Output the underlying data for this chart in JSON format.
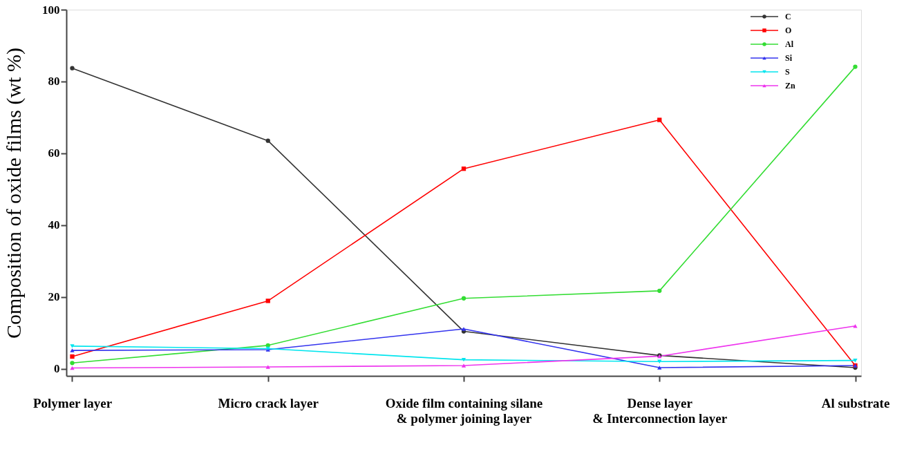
{
  "chart_data": {
    "type": "line",
    "ylabel": "Composition of oxide films (wt %)",
    "categories": [
      "Polymer layer",
      "Micro crack layer",
      "Oxide film containing silane\n& polymer joining layer",
      "Dense layer\n& Interconnection layer",
      "Al substrate"
    ],
    "series": [
      {
        "name": "C",
        "color": "#333333",
        "marker": "circle",
        "values": [
          83.7,
          63.5,
          10.4,
          3.7,
          0.3
        ]
      },
      {
        "name": "O",
        "color": "#ff0000",
        "marker": "square",
        "values": [
          3.4,
          18.9,
          55.7,
          69.3,
          0.9
        ]
      },
      {
        "name": "Al",
        "color": "#33dd33",
        "marker": "circle",
        "values": [
          1.6,
          6.5,
          19.6,
          21.7,
          84.1
        ]
      },
      {
        "name": "Si",
        "color": "#3333ee",
        "marker": "triangle",
        "values": [
          5.1,
          5.3,
          11.1,
          0.3,
          0.9
        ]
      },
      {
        "name": "S",
        "color": "#00e5ee",
        "marker": "triangle-down",
        "values": [
          6.3,
          5.6,
          2.5,
          2.0,
          2.3
        ]
      },
      {
        "name": "Zn",
        "color": "#ee33ee",
        "marker": "triangle",
        "values": [
          0.2,
          0.5,
          0.9,
          3.5,
          11.9
        ]
      }
    ],
    "ylim": [
      -2,
      100
    ],
    "yticks": [
      0,
      20,
      40,
      60,
      80,
      100
    ],
    "grid": false,
    "legend": "top right",
    "line_style": "solid"
  }
}
